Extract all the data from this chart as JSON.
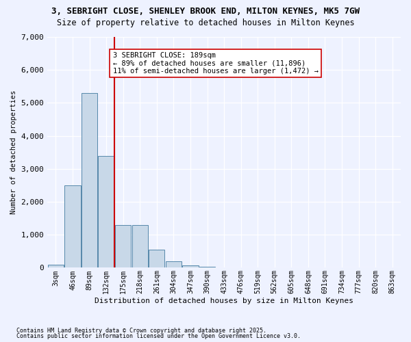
{
  "title_line1": "3, SEBRIGHT CLOSE, SHENLEY BROOK END, MILTON KEYNES, MK5 7GW",
  "title_line2": "Size of property relative to detached houses in Milton Keynes",
  "xlabel": "Distribution of detached houses by size in Milton Keynes",
  "ylabel": "Number of detached properties",
  "bin_labels": [
    "3sqm",
    "46sqm",
    "89sqm",
    "132sqm",
    "175sqm",
    "218sqm",
    "261sqm",
    "304sqm",
    "347sqm",
    "390sqm",
    "433sqm",
    "476sqm",
    "519sqm",
    "562sqm",
    "605sqm",
    "648sqm",
    "691sqm",
    "734sqm",
    "777sqm",
    "820sqm",
    "863sqm"
  ],
  "bar_values": [
    100,
    2500,
    5300,
    3400,
    1300,
    1300,
    550,
    200,
    80,
    30,
    10,
    5,
    2,
    1,
    0,
    0,
    0,
    0,
    0,
    0,
    0
  ],
  "bar_color": "#c8d8e8",
  "bar_edge_color": "#5588aa",
  "vline_pos": 3.5,
  "vline_color": "#cc0000",
  "annotation_text": "3 SEBRIGHT CLOSE: 189sqm\n← 89% of detached houses are smaller (11,896)\n11% of semi-detached houses are larger (1,472) →",
  "annotation_box_color": "#ffffff",
  "annotation_box_edge": "#cc0000",
  "ylim": [
    0,
    7000
  ],
  "yticks": [
    0,
    1000,
    2000,
    3000,
    4000,
    5000,
    6000,
    7000
  ],
  "footnote1": "Contains HM Land Registry data © Crown copyright and database right 2025.",
  "footnote2": "Contains public sector information licensed under the Open Government Licence v3.0.",
  "bg_color": "#eef2ff"
}
